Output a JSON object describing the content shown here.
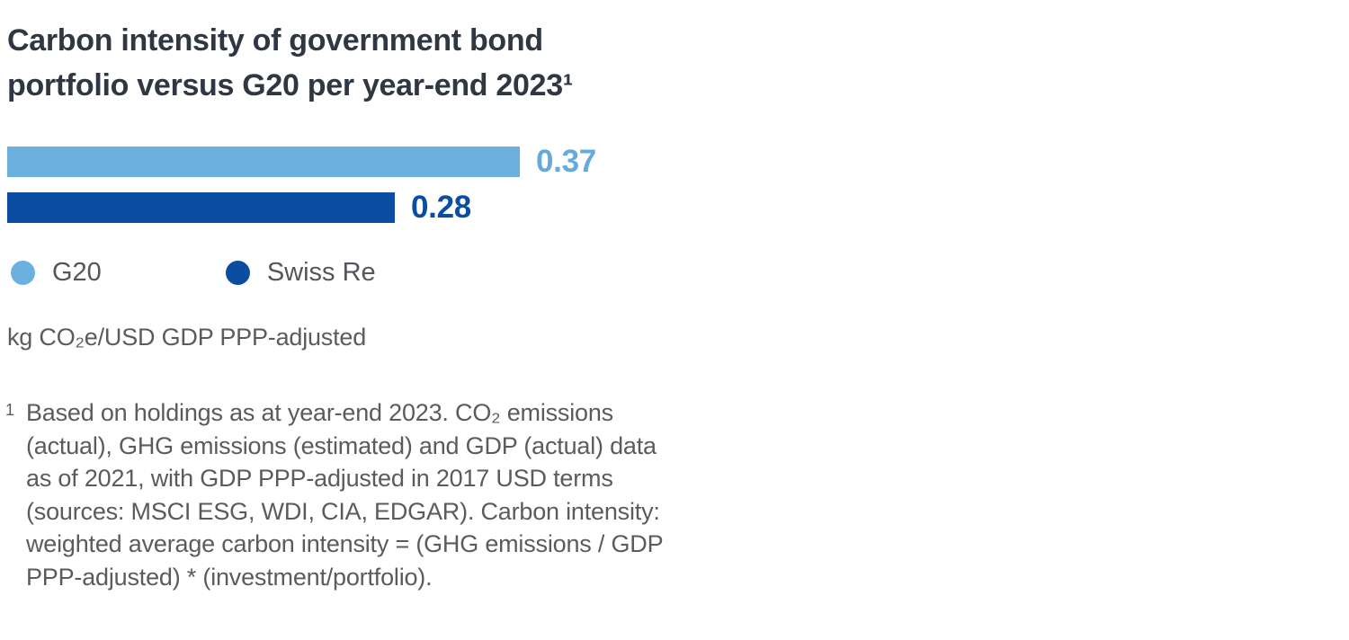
{
  "page": {
    "background": "#ffffff",
    "title_color": "#2f3742",
    "text_color": "#595b5e"
  },
  "title": {
    "line1": "Carbon intensity of government bond",
    "line2": "portfolio versus G20 per year-end 2023¹"
  },
  "chart_data": {
    "type": "bar",
    "orientation": "horizontal",
    "title": "Carbon intensity of government bond portfolio versus G20 per year-end 2023¹",
    "categories": [
      "G20",
      "Swiss Re"
    ],
    "values": [
      0.37,
      0.28
    ],
    "value_labels": [
      "0.37",
      "0.28"
    ],
    "series_colors": [
      "#6cb0e0",
      "#0b4da2"
    ],
    "value_label_colors": [
      "#65aadc",
      "#0b4da2"
    ],
    "xlim": [
      0,
      0.4
    ],
    "unit_label": "kg CO₂e/USD GDP PPP-adjusted",
    "legend_position": "below-bars",
    "legend": [
      {
        "label": "G20",
        "color": "#6cb0e0",
        "marker": "circle"
      },
      {
        "label": "Swiss Re",
        "color": "#0b4da2",
        "marker": "circle"
      }
    ],
    "grid": false,
    "axes_visible": false
  },
  "footnote": {
    "marker": "1",
    "text": "Based on holdings as at year-end 2023. CO₂ emissions (actual), GHG emissions (estimated) and GDP (actual) data as of 2021, with GDP PPP-adjusted in 2017 USD terms (sources: MSCI ESG, WDI, CIA, EDGAR). Carbon intensity: weighted average carbon intensity = (GHG emissions / GDP PPP-adjusted) * (investment/portfolio)."
  }
}
